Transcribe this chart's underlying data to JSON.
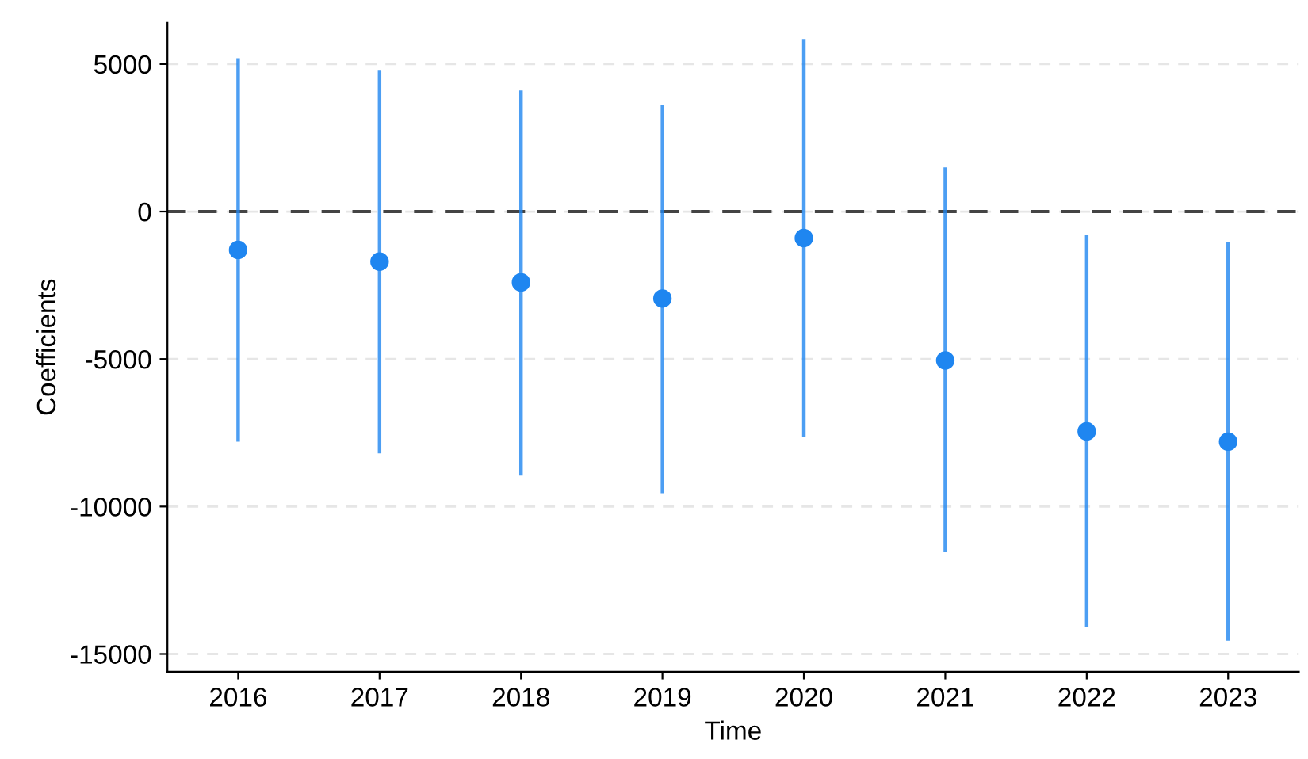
{
  "chart_data": {
    "type": "scatter",
    "xlabel": "Time",
    "ylabel": "Coefficients",
    "categories": [
      "2016",
      "2017",
      "2018",
      "2019",
      "2020",
      "2021",
      "2022",
      "2023"
    ],
    "series": [
      {
        "color": "#1f86f0",
        "values": [
          -1300,
          -1700,
          -2400,
          -2950,
          -900,
          -5050,
          -7450,
          -7800
        ],
        "errors": [
          [
            -7800,
            5200
          ],
          [
            -8200,
            4800
          ],
          [
            -8950,
            4100
          ],
          [
            -9550,
            3600
          ],
          [
            -7650,
            5850
          ],
          [
            -11550,
            1500
          ],
          [
            -14100,
            -800
          ],
          [
            -14550,
            -1050
          ]
        ]
      }
    ],
    "ylim": [
      -15600,
      6400
    ],
    "yticks": [
      -15000,
      -10000,
      -5000,
      0,
      5000
    ],
    "grid": "y",
    "marker": "circle",
    "legend": false,
    "ref_lines": [
      {
        "axis": "y",
        "value": 0,
        "color": "#444444",
        "line_style": "dashed"
      }
    ]
  }
}
